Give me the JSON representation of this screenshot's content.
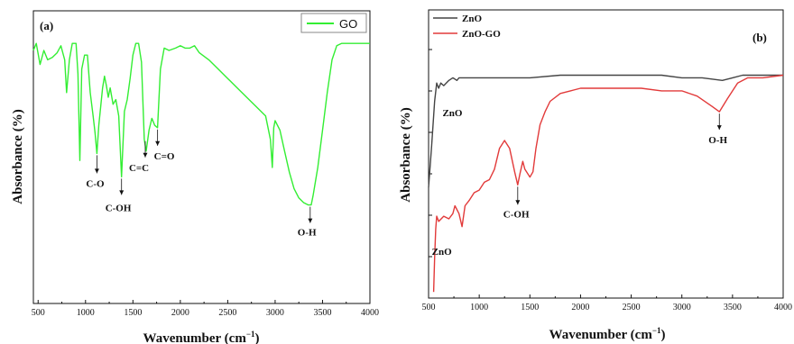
{
  "colors": {
    "go": "#33ee33",
    "zno": "#444444",
    "znogo": "#e23a3a",
    "axis": "#111111"
  },
  "chart_data": [
    {
      "type": "line",
      "panel_label": "(a)",
      "xlabel": "Wavenumber (cm⁻¹)",
      "ylabel": "Absorbance (%)",
      "xlim": [
        450,
        4000
      ],
      "ylim": [
        0,
        100
      ],
      "x_ticks": [
        "500",
        "1000",
        "1500",
        "2000",
        "2500",
        "3000",
        "3500",
        "4000"
      ],
      "x_tick_values": [
        500,
        1000,
        1500,
        2000,
        2500,
        3000,
        3500,
        4000
      ],
      "legend": {
        "position": "top-right"
      },
      "series": [
        {
          "name": "GO",
          "color": "#33ee33",
          "points": [
            [
              450,
              90
            ],
            [
              480,
              93
            ],
            [
              520,
              84
            ],
            [
              560,
              90
            ],
            [
              600,
              86
            ],
            [
              650,
              87
            ],
            [
              700,
              89
            ],
            [
              740,
              92
            ],
            [
              780,
              86
            ],
            [
              800,
              72
            ],
            [
              830,
              86
            ],
            [
              860,
              93
            ],
            [
              900,
              93
            ],
            [
              920,
              80
            ],
            [
              940,
              43
            ],
            [
              960,
              82
            ],
            [
              990,
              88
            ],
            [
              1020,
              88
            ],
            [
              1050,
              72
            ],
            [
              1080,
              62
            ],
            [
              1100,
              55
            ],
            [
              1120,
              46
            ],
            [
              1140,
              58
            ],
            [
              1160,
              66
            ],
            [
              1180,
              74
            ],
            [
              1200,
              79
            ],
            [
              1220,
              75
            ],
            [
              1240,
              70
            ],
            [
              1260,
              74
            ],
            [
              1290,
              67
            ],
            [
              1320,
              69
            ],
            [
              1350,
              62
            ],
            [
              1380,
              36
            ],
            [
              1410,
              64
            ],
            [
              1440,
              69
            ],
            [
              1470,
              78
            ],
            [
              1500,
              88
            ],
            [
              1530,
              93
            ],
            [
              1560,
              93
            ],
            [
              1590,
              85
            ],
            [
              1620,
              52
            ],
            [
              1640,
              47
            ],
            [
              1670,
              56
            ],
            [
              1700,
              61
            ],
            [
              1730,
              58
            ],
            [
              1760,
              57
            ],
            [
              1790,
              82
            ],
            [
              1830,
              91
            ],
            [
              1880,
              90
            ],
            [
              1950,
              91
            ],
            [
              2000,
              92
            ],
            [
              2050,
              91
            ],
            [
              2100,
              91
            ],
            [
              2150,
              92
            ],
            [
              2200,
              89
            ],
            [
              2300,
              86
            ],
            [
              2400,
              82
            ],
            [
              2500,
              78
            ],
            [
              2600,
              74
            ],
            [
              2700,
              70
            ],
            [
              2800,
              66
            ],
            [
              2900,
              62
            ],
            [
              2950,
              52
            ],
            [
              2970,
              40
            ],
            [
              2985,
              57
            ],
            [
              3000,
              60
            ],
            [
              3050,
              56
            ],
            [
              3100,
              47
            ],
            [
              3150,
              38
            ],
            [
              3200,
              31
            ],
            [
              3250,
              27
            ],
            [
              3300,
              25
            ],
            [
              3350,
              24
            ],
            [
              3380,
              24
            ],
            [
              3400,
              28
            ],
            [
              3450,
              40
            ],
            [
              3500,
              56
            ],
            [
              3550,
              72
            ],
            [
              3600,
              86
            ],
            [
              3650,
              92
            ],
            [
              3700,
              93
            ],
            [
              3800,
              93
            ],
            [
              3900,
              93
            ],
            [
              4000,
              93
            ]
          ]
        }
      ],
      "annotations": [
        {
          "text": "C-O",
          "x": 1120
        },
        {
          "text": "C-OH",
          "x": 1380
        },
        {
          "text": "C=C",
          "x": 1630
        },
        {
          "text": "C=O",
          "x": 1760
        },
        {
          "text": "O-H",
          "x": 3370
        }
      ]
    },
    {
      "type": "line",
      "panel_label": "(b)",
      "xlabel": "Wavenumber (cm⁻¹)",
      "ylabel": "Absorbance (%)",
      "xlim": [
        500,
        4000
      ],
      "ylim": [
        0,
        100
      ],
      "x_ticks": [
        "500",
        "1000",
        "1500",
        "2000",
        "2500",
        "3000",
        "3500",
        "4000"
      ],
      "x_tick_values": [
        500,
        1000,
        1500,
        2000,
        2500,
        3000,
        3500,
        4000
      ],
      "legend": {
        "position": "top-left"
      },
      "series": [
        {
          "name": "ZnO",
          "color": "#444444",
          "points": [
            [
              500,
              42
            ],
            [
              530,
              58
            ],
            [
              560,
              75
            ],
            [
              580,
              82
            ],
            [
              600,
              80
            ],
            [
              620,
              82
            ],
            [
              650,
              81
            ],
            [
              700,
              83
            ],
            [
              740,
              84
            ],
            [
              780,
              83
            ],
            [
              800,
              84
            ],
            [
              850,
              84
            ],
            [
              900,
              84
            ],
            [
              1000,
              84
            ],
            [
              1200,
              84
            ],
            [
              1500,
              84
            ],
            [
              1800,
              85
            ],
            [
              2000,
              85
            ],
            [
              2100,
              85
            ],
            [
              2200,
              85
            ],
            [
              2400,
              85
            ],
            [
              2600,
              85
            ],
            [
              2800,
              85
            ],
            [
              3000,
              84
            ],
            [
              3200,
              84
            ],
            [
              3400,
              83
            ],
            [
              3500,
              84
            ],
            [
              3600,
              85
            ],
            [
              3800,
              85
            ],
            [
              4000,
              85
            ]
          ]
        },
        {
          "name": "ZnO-GO",
          "color": "#e23a3a",
          "points": [
            [
              550,
              2
            ],
            [
              560,
              15
            ],
            [
              570,
              26
            ],
            [
              580,
              31
            ],
            [
              600,
              29
            ],
            [
              650,
              31
            ],
            [
              700,
              30
            ],
            [
              740,
              32
            ],
            [
              760,
              35
            ],
            [
              800,
              32
            ],
            [
              830,
              27
            ],
            [
              860,
              35
            ],
            [
              900,
              37
            ],
            [
              950,
              40
            ],
            [
              1000,
              41
            ],
            [
              1050,
              44
            ],
            [
              1100,
              45
            ],
            [
              1150,
              49
            ],
            [
              1200,
              57
            ],
            [
              1250,
              60
            ],
            [
              1300,
              57
            ],
            [
              1350,
              48
            ],
            [
              1380,
              43
            ],
            [
              1400,
              47
            ],
            [
              1430,
              52
            ],
            [
              1450,
              49
            ],
            [
              1500,
              46
            ],
            [
              1530,
              48
            ],
            [
              1560,
              57
            ],
            [
              1600,
              66
            ],
            [
              1650,
              71
            ],
            [
              1700,
              75
            ],
            [
              1800,
              78
            ],
            [
              1900,
              79
            ],
            [
              2000,
              80
            ],
            [
              2200,
              80
            ],
            [
              2400,
              80
            ],
            [
              2600,
              80
            ],
            [
              2800,
              79
            ],
            [
              3000,
              79
            ],
            [
              3150,
              77
            ],
            [
              3300,
              73
            ],
            [
              3370,
              71
            ],
            [
              3450,
              76
            ],
            [
              3550,
              82
            ],
            [
              3650,
              84
            ],
            [
              3800,
              84
            ],
            [
              4000,
              85
            ]
          ]
        }
      ],
      "annotations": [
        {
          "text": "ZnO",
          "x": 620
        },
        {
          "text": "ZnO",
          "x": 550
        },
        {
          "text": "C-OH",
          "x": 1380
        },
        {
          "text": "O-H",
          "x": 3370
        }
      ]
    }
  ]
}
